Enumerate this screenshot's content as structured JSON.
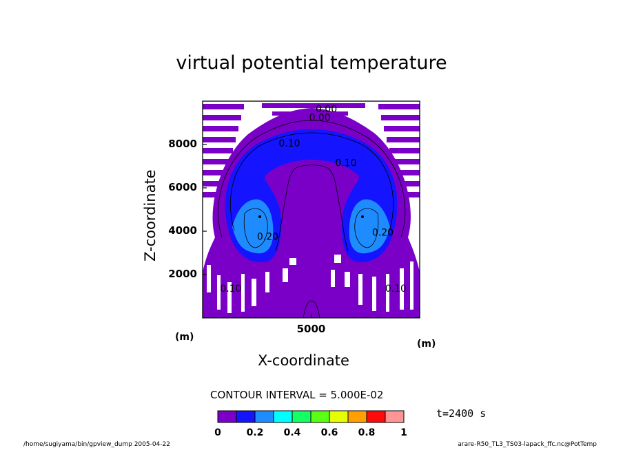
{
  "chart_data": {
    "type": "heatmap",
    "title": "virtual potential temperature",
    "xlabel": "X-coordinate",
    "ylabel": "Z-coordinate",
    "x_unit": "(m)",
    "y_unit": "(m)",
    "x_ticks": [
      5000
    ],
    "y_ticks": [
      2000,
      4000,
      6000,
      8000
    ],
    "xlim": [
      0,
      10000
    ],
    "ylim": [
      0,
      10000
    ],
    "contour_interval_text": "CONTOUR INTERVAL = 5.000E-02",
    "contour_labels": [
      {
        "text": "0.00",
        "x": 5700,
        "y": 9500
      },
      {
        "text": "0.00",
        "x": 5400,
        "y": 9100
      },
      {
        "text": "0.10",
        "x": 4000,
        "y": 7900
      },
      {
        "text": "0.10",
        "x": 6600,
        "y": 7000
      },
      {
        "text": "0.20",
        "x": 3000,
        "y": 3600
      },
      {
        "text": "0.20",
        "x": 8300,
        "y": 3800
      },
      {
        "text": "0.10",
        "x": 1300,
        "y": 1200
      },
      {
        "text": "0.10",
        "x": 8900,
        "y": 1200
      }
    ],
    "colorbar": {
      "levels": [
        0,
        0.1,
        0.2,
        0.3,
        0.4,
        0.5,
        0.6,
        0.7,
        0.8,
        0.9,
        1.0
      ],
      "colors": [
        "#7a00c8",
        "#1414ff",
        "#1e8cff",
        "#00ffff",
        "#14ff64",
        "#5aff14",
        "#e6ff00",
        "#ffa000",
        "#ff0a0a",
        "#ff9696"
      ],
      "tick_labels": [
        "0",
        "0.2",
        "0.4",
        "0.6",
        "0.8",
        "1"
      ]
    },
    "grid": false
  },
  "time_label": "t=2400 s",
  "footer_left": "/home/sugiyama/bin/gpview_dump  2005-04-22",
  "footer_right": "arare-R50_TL3_TS03-lapack_ffc.nc@PotTemp"
}
